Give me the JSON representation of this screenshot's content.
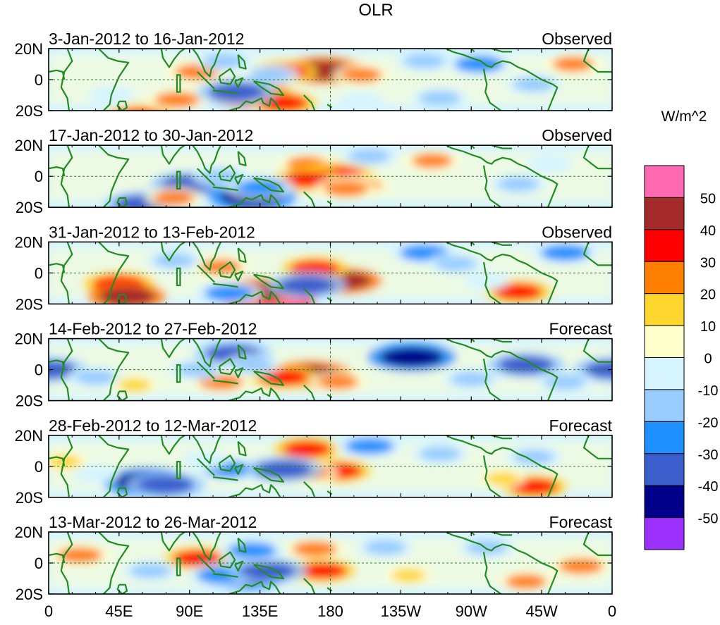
{
  "chart_data": {
    "type": "heatmap",
    "title": "OLR",
    "colorbar": {
      "units": "W/m^2",
      "colors": [
        "#9b30ff",
        "#00008b",
        "#3a5fcd",
        "#1e90ff",
        "#99ccff",
        "#d6f4ff",
        "#ffffcc",
        "#ffd62e",
        "#ff7f00",
        "#ff0000",
        "#a52a2a",
        "#ff69b4"
      ],
      "labels": [
        "-50",
        "-40",
        "-30",
        "-20",
        "-10",
        "0",
        "10",
        "20",
        "30",
        "40",
        "50"
      ]
    },
    "x_ticks": [
      "0",
      "45E",
      "90E",
      "135E",
      "180",
      "135W",
      "90W",
      "45W",
      "0"
    ],
    "y_ticks": [
      "20N",
      "0",
      "20S"
    ],
    "panels": [
      {
        "period": "3-Jan-2012 to 16-Jan-2012",
        "label": "Observed",
        "anomalies": [
          {
            "lon": 58,
            "lat": -24,
            "v": 35
          },
          {
            "lon": 95,
            "lat": 5,
            "v": 25
          },
          {
            "lon": 82,
            "lat": -13,
            "v": 25
          },
          {
            "lon": 175,
            "lat": 6,
            "v": 45
          },
          {
            "lon": 150,
            "lat": 5,
            "v": 30
          },
          {
            "lon": 200,
            "lat": 3,
            "v": 20
          },
          {
            "lon": 130,
            "lat": -10,
            "v": 45
          },
          {
            "lon": 150,
            "lat": -15,
            "v": 30
          },
          {
            "lon": 142,
            "lat": 3,
            "v": -20
          },
          {
            "lon": 120,
            "lat": -8,
            "v": -40
          },
          {
            "lon": 112,
            "lat": 12,
            "v": -20
          },
          {
            "lon": 240,
            "lat": 12,
            "v": -20
          },
          {
            "lon": 275,
            "lat": 10,
            "v": -30
          },
          {
            "lon": 250,
            "lat": -12,
            "v": -20
          },
          {
            "lon": 310,
            "lat": -3,
            "v": -20
          },
          {
            "lon": 335,
            "lat": 10,
            "v": 20
          },
          {
            "lon": 40,
            "lat": -10,
            "v": -10
          },
          {
            "lon": 200,
            "lat": -14,
            "v": -10
          }
        ]
      },
      {
        "period": "17-Jan-2012 to 30-Jan-2012",
        "label": "Observed",
        "anomalies": [
          {
            "lon": 165,
            "lat": 8,
            "v": 20
          },
          {
            "lon": 185,
            "lat": 1,
            "v": 35
          },
          {
            "lon": 165,
            "lat": -2,
            "v": 30
          },
          {
            "lon": 200,
            "lat": -6,
            "v": 20
          },
          {
            "lon": 190,
            "lat": -8,
            "v": 25
          },
          {
            "lon": 245,
            "lat": 10,
            "v": 20
          },
          {
            "lon": 90,
            "lat": -5,
            "v": -40
          },
          {
            "lon": 130,
            "lat": -13,
            "v": -50
          },
          {
            "lon": 60,
            "lat": -18,
            "v": -40
          },
          {
            "lon": 135,
            "lat": -7,
            "v": -30
          },
          {
            "lon": 110,
            "lat": 0,
            "v": -20
          },
          {
            "lon": 205,
            "lat": 13,
            "v": -20
          },
          {
            "lon": 300,
            "lat": -5,
            "v": -20
          },
          {
            "lon": 320,
            "lat": 8,
            "v": -10
          },
          {
            "lon": 80,
            "lat": -14,
            "v": 20
          }
        ]
      },
      {
        "period": "31-Jan-2012 to 13-Feb-2012",
        "label": "Observed",
        "anomalies": [
          {
            "lon": 140,
            "lat": -17,
            "v": 55
          },
          {
            "lon": 135,
            "lat": -12,
            "v": 40
          },
          {
            "lon": 188,
            "lat": -5,
            "v": 40
          },
          {
            "lon": 170,
            "lat": 3,
            "v": 30
          },
          {
            "lon": 45,
            "lat": -7,
            "v": 35
          },
          {
            "lon": 50,
            "lat": -15,
            "v": 40
          },
          {
            "lon": 300,
            "lat": -12,
            "v": 30
          },
          {
            "lon": 110,
            "lat": 4,
            "v": 20
          },
          {
            "lon": 165,
            "lat": -8,
            "v": -40
          },
          {
            "lon": 115,
            "lat": -13,
            "v": -30
          },
          {
            "lon": 240,
            "lat": 13,
            "v": -30
          },
          {
            "lon": 330,
            "lat": 13,
            "v": -30
          },
          {
            "lon": 260,
            "lat": 6,
            "v": -20
          },
          {
            "lon": 80,
            "lat": 8,
            "v": -20
          },
          {
            "lon": 280,
            "lat": -5,
            "v": -10
          }
        ]
      },
      {
        "period": "14-Feb-2012 to 27-Feb-2012",
        "label": "Forecast",
        "anomalies": [
          {
            "lon": 167,
            "lat": -3,
            "v": 45
          },
          {
            "lon": 150,
            "lat": -5,
            "v": 30
          },
          {
            "lon": 110,
            "lat": -8,
            "v": 25
          },
          {
            "lon": 185,
            "lat": -8,
            "v": 20
          },
          {
            "lon": 232,
            "lat": 8,
            "v": -50
          },
          {
            "lon": 118,
            "lat": 10,
            "v": -40
          },
          {
            "lon": 0,
            "lat": 0,
            "v": -40
          },
          {
            "lon": 360,
            "lat": 0,
            "v": -40
          },
          {
            "lon": 305,
            "lat": 3,
            "v": -40
          },
          {
            "lon": 130,
            "lat": 3,
            "v": -20
          },
          {
            "lon": 30,
            "lat": -5,
            "v": -20
          },
          {
            "lon": 270,
            "lat": -6,
            "v": -20
          },
          {
            "lon": 330,
            "lat": -8,
            "v": -20
          },
          {
            "lon": 95,
            "lat": 0,
            "v": -20
          },
          {
            "lon": 55,
            "lat": -10,
            "v": 10
          }
        ]
      },
      {
        "period": "28-Feb-2012 to 12-Mar-2012",
        "label": "Forecast",
        "anomalies": [
          {
            "lon": 165,
            "lat": 11,
            "v": 30
          },
          {
            "lon": 185,
            "lat": -3,
            "v": 30
          },
          {
            "lon": 165,
            "lat": -4,
            "v": 25
          },
          {
            "lon": 310,
            "lat": -13,
            "v": 30
          },
          {
            "lon": 63,
            "lat": -10,
            "v": -50
          },
          {
            "lon": 75,
            "lat": -12,
            "v": -40
          },
          {
            "lon": 115,
            "lat": -2,
            "v": -30
          },
          {
            "lon": 150,
            "lat": -2,
            "v": -40
          },
          {
            "lon": 205,
            "lat": 13,
            "v": -30
          },
          {
            "lon": 250,
            "lat": 8,
            "v": -20
          },
          {
            "lon": 310,
            "lat": 6,
            "v": -20
          },
          {
            "lon": 100,
            "lat": 4,
            "v": -10
          },
          {
            "lon": 30,
            "lat": -5,
            "v": -10
          },
          {
            "lon": 290,
            "lat": -8,
            "v": 10
          },
          {
            "lon": 10,
            "lat": 3,
            "v": 10
          }
        ]
      },
      {
        "period": "13-Mar-2012 to 26-Mar-2012",
        "label": "Forecast",
        "anomalies": [
          {
            "lon": 170,
            "lat": 9,
            "v": 25
          },
          {
            "lon": 175,
            "lat": -5,
            "v": 30
          },
          {
            "lon": 95,
            "lat": 3,
            "v": 30
          },
          {
            "lon": 20,
            "lat": 5,
            "v": 25
          },
          {
            "lon": 340,
            "lat": -2,
            "v": 25
          },
          {
            "lon": 305,
            "lat": -12,
            "v": 20
          },
          {
            "lon": 125,
            "lat": -8,
            "v": -50
          },
          {
            "lon": 110,
            "lat": -8,
            "v": -30
          },
          {
            "lon": 140,
            "lat": -5,
            "v": -40
          },
          {
            "lon": 65,
            "lat": -5,
            "v": -20
          },
          {
            "lon": 130,
            "lat": 8,
            "v": -30
          },
          {
            "lon": 215,
            "lat": 10,
            "v": -20
          },
          {
            "lon": 280,
            "lat": 10,
            "v": -20
          },
          {
            "lon": 230,
            "lat": -8,
            "v": 10
          }
        ]
      }
    ]
  }
}
